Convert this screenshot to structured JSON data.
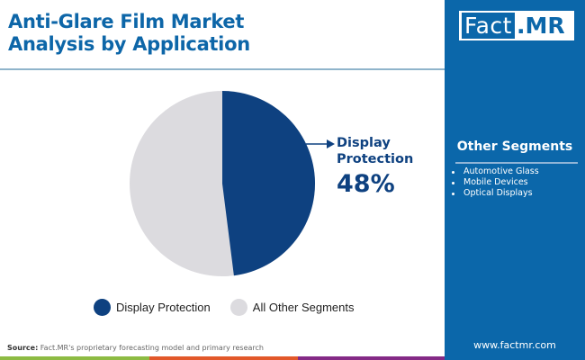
{
  "header": {
    "title_line1": "Anti-Glare Film Market",
    "title_line2": "Analysis by Application"
  },
  "brand": {
    "logo_left": "Fact",
    "logo_right": ".MR",
    "website": "www.factmr.com",
    "colors": {
      "primary": "#0b67aa",
      "title": "#0d66a8",
      "dark": "#0e4180"
    }
  },
  "other_segments": {
    "title": "Other Segments",
    "items": [
      "Automotive Glass",
      "Mobile Devices",
      "Optical Displays"
    ]
  },
  "callout": {
    "label": "Display Protection",
    "value": "48%"
  },
  "legend": [
    {
      "label": "Display Protection",
      "color": "#0e4180"
    },
    {
      "label": "All Other Segments",
      "color": "#dcdbdf"
    }
  ],
  "footer": {
    "source_label": "Source:",
    "source_text": " Fact.MR's proprietary forecasting model and primary research",
    "bar_colors": [
      "#8dbb43",
      "#e2582a",
      "#842a86"
    ]
  },
  "chart_data": {
    "type": "pie",
    "title": "Anti-Glare Film Market Analysis by Application",
    "categories": [
      "Display Protection",
      "All Other Segments"
    ],
    "values": [
      48,
      52
    ],
    "colors": [
      "#0e4180",
      "#dcdbdf"
    ],
    "annotations": [
      {
        "target": "Display Protection",
        "text": "Display Protection 48%"
      }
    ],
    "legend_position": "bottom"
  }
}
